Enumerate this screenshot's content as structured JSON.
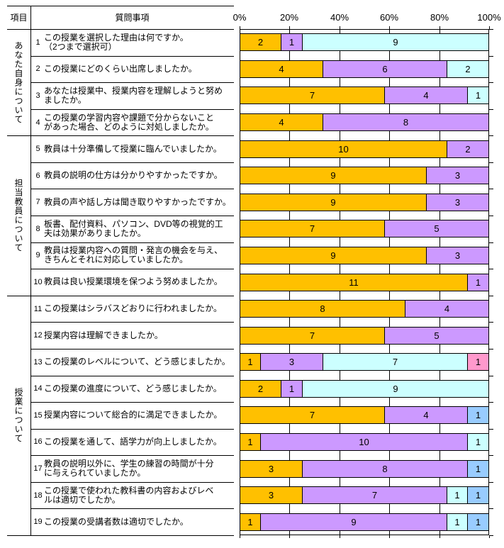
{
  "header": {
    "item_col": "項目",
    "question_col": "質問事項"
  },
  "sections": [
    {
      "label": "あなた自身について",
      "question_range": "1-4",
      "row_span": 4
    },
    {
      "label": "担当教員について",
      "question_range": "5-10",
      "row_span": 6
    },
    {
      "label": "授業について",
      "question_range": "11-19",
      "row_span": 9
    }
  ],
  "questions": [
    {
      "no": "1",
      "text": "この授業を選択した理由は何ですか。\n（2つまで選択可）"
    },
    {
      "no": "2",
      "text": "この授業にどのくらい出席しましたか。"
    },
    {
      "no": "3",
      "text": "あなたは授業中、授業内容を理解しようと努め\nましたか。"
    },
    {
      "no": "4",
      "text": "この授業の学習内容や課題で分からないこと\nがあった場合、どのように対処しましたか。"
    },
    {
      "no": "5",
      "text": "教員は十分準備して授業に臨んでいましたか。"
    },
    {
      "no": "6",
      "text": "教員の説明の仕方は分かりやすかったですか。"
    },
    {
      "no": "7",
      "text": "教員の声や話し方は聞き取りやすかったですか。"
    },
    {
      "no": "8",
      "text": "板書、配付資料、パソコン、DVD等の視覚的工\n夫は効果がありましたか。"
    },
    {
      "no": "9",
      "text": "教員は授業内容への質問・発言の機会を与え、\nきちんとそれに対応していましたか。"
    },
    {
      "no": "10",
      "text": "教員は良い授業環境を保つよう努めましたか。"
    },
    {
      "no": "11",
      "text": "この授業はシラバスどおりに行われましたか。"
    },
    {
      "no": "12",
      "text": "授業内容は理解できましたか。"
    },
    {
      "no": "13",
      "text": "この授業のレベルについて、どう感じましたか。"
    },
    {
      "no": "14",
      "text": "この授業の進度について、どう感じましたか。"
    },
    {
      "no": "15",
      "text": "授業内容について総合的に満足できましたか。"
    },
    {
      "no": "16",
      "text": "この授業を通して、語学力が向上しましたか。"
    },
    {
      "no": "17",
      "text": "教員の説明以外に、学生の練習の時間が十分\nに与えられていましたか。"
    },
    {
      "no": "18",
      "text": "この授業で使われた教科書の内容およびレベ\nルは適切でしたか。"
    },
    {
      "no": "19",
      "text": "この授業の受講者数は適切でしたか。"
    }
  ],
  "chart_data": {
    "type": "bar",
    "subtype": "stacked-horizontal",
    "value_axis": {
      "position": "top",
      "min": 0,
      "max": 100,
      "ticks": [
        "0%",
        "20%",
        "40%",
        "60%",
        "80%",
        "100%"
      ]
    },
    "gridlines": true,
    "grid_color": "#000000",
    "total_per_row": 12,
    "palette": {
      "gold": "#FFC000",
      "purple": "#CC99FF",
      "cyan": "#CCFFFF",
      "pink": "#FF99CC",
      "blue": "#99CCFF"
    },
    "rows": [
      {
        "question": "1",
        "segments": [
          {
            "value": 2,
            "color": "gold"
          },
          {
            "value": 1,
            "color": "purple"
          },
          {
            "value": 9,
            "color": "cyan"
          }
        ]
      },
      {
        "question": "2",
        "segments": [
          {
            "value": 4,
            "color": "gold"
          },
          {
            "value": 6,
            "color": "purple"
          },
          {
            "value": 2,
            "color": "cyan"
          }
        ]
      },
      {
        "question": "3",
        "segments": [
          {
            "value": 7,
            "color": "gold"
          },
          {
            "value": 4,
            "color": "purple"
          },
          {
            "value": 1,
            "color": "cyan"
          }
        ]
      },
      {
        "question": "4",
        "segments": [
          {
            "value": 4,
            "color": "gold"
          },
          {
            "value": 8,
            "color": "purple"
          }
        ]
      },
      {
        "question": "5",
        "segments": [
          {
            "value": 10,
            "color": "gold"
          },
          {
            "value": 2,
            "color": "purple"
          }
        ]
      },
      {
        "question": "6",
        "segments": [
          {
            "value": 9,
            "color": "gold"
          },
          {
            "value": 3,
            "color": "purple"
          }
        ]
      },
      {
        "question": "7",
        "segments": [
          {
            "value": 9,
            "color": "gold"
          },
          {
            "value": 3,
            "color": "purple"
          }
        ]
      },
      {
        "question": "8",
        "segments": [
          {
            "value": 7,
            "color": "gold"
          },
          {
            "value": 5,
            "color": "purple"
          }
        ]
      },
      {
        "question": "9",
        "segments": [
          {
            "value": 9,
            "color": "gold"
          },
          {
            "value": 3,
            "color": "purple"
          }
        ]
      },
      {
        "question": "10",
        "segments": [
          {
            "value": 11,
            "color": "gold"
          },
          {
            "value": 1,
            "color": "purple"
          }
        ]
      },
      {
        "question": "11",
        "segments": [
          {
            "value": 8,
            "color": "gold"
          },
          {
            "value": 4,
            "color": "purple"
          }
        ]
      },
      {
        "question": "12",
        "segments": [
          {
            "value": 7,
            "color": "gold"
          },
          {
            "value": 5,
            "color": "purple"
          }
        ]
      },
      {
        "question": "13",
        "segments": [
          {
            "value": 1,
            "color": "gold"
          },
          {
            "value": 3,
            "color": "purple"
          },
          {
            "value": 7,
            "color": "cyan"
          },
          {
            "value": 1,
            "color": "pink"
          }
        ]
      },
      {
        "question": "14",
        "segments": [
          {
            "value": 2,
            "color": "gold"
          },
          {
            "value": 1,
            "color": "purple"
          },
          {
            "value": 9,
            "color": "cyan"
          }
        ]
      },
      {
        "question": "15",
        "segments": [
          {
            "value": 7,
            "color": "gold"
          },
          {
            "value": 4,
            "color": "purple"
          },
          {
            "value": 1,
            "color": "blue"
          }
        ]
      },
      {
        "question": "16",
        "segments": [
          {
            "value": 1,
            "color": "gold"
          },
          {
            "value": 10,
            "color": "purple"
          },
          {
            "value": 1,
            "color": "cyan"
          }
        ]
      },
      {
        "question": "17",
        "segments": [
          {
            "value": 3,
            "color": "gold"
          },
          {
            "value": 8,
            "color": "purple"
          },
          {
            "value": 1,
            "color": "blue"
          }
        ]
      },
      {
        "question": "18",
        "segments": [
          {
            "value": 3,
            "color": "gold"
          },
          {
            "value": 7,
            "color": "purple"
          },
          {
            "value": 1,
            "color": "cyan"
          },
          {
            "value": 1,
            "color": "blue"
          }
        ]
      },
      {
        "question": "19",
        "segments": [
          {
            "value": 1,
            "color": "gold"
          },
          {
            "value": 9,
            "color": "purple"
          },
          {
            "value": 1,
            "color": "cyan"
          },
          {
            "value": 1,
            "color": "blue"
          }
        ]
      }
    ]
  }
}
